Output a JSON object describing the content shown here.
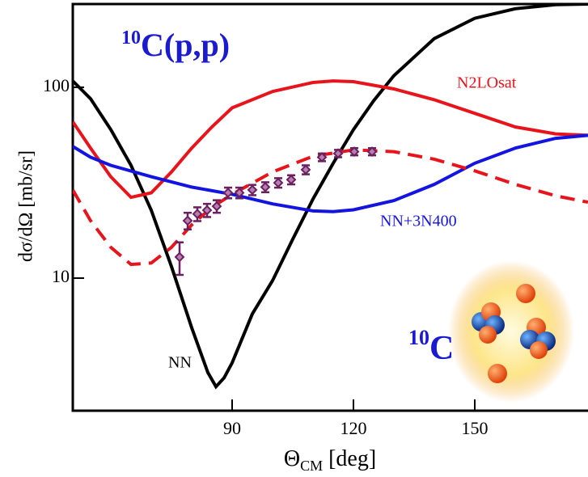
{
  "chart_data": {
    "type": "line",
    "title": {
      "sup": "10",
      "main": "C(p,p)"
    },
    "nucleus_label": {
      "sup": "10",
      "main": "C"
    },
    "y_label": "dσ/dΩ  [mb/sr]",
    "x_label": {
      "main": "Θ",
      "sub": "CM",
      "rest": " [deg]"
    },
    "log_y": true,
    "xlim": [
      50.6,
      178
    ],
    "ylim": [
      2.02,
      273
    ],
    "xticks": [
      90,
      120,
      150
    ],
    "yticks": [
      10,
      100
    ],
    "series": [
      {
        "name": "NN",
        "color": "#000000",
        "dash": false,
        "x": [
          50.6,
          55,
          60,
          65,
          70,
          75,
          80,
          84,
          86,
          88,
          90,
          95,
          100,
          105,
          110,
          115,
          120,
          125,
          130,
          140,
          150,
          160,
          170,
          178
        ],
        "values": [
          108,
          87,
          60,
          39,
          22.7,
          11.5,
          5.5,
          3.2,
          2.7,
          3.0,
          3.6,
          6.5,
          9.7,
          16,
          26,
          40,
          60,
          85,
          115,
          180,
          230,
          258,
          271,
          273
        ]
      },
      {
        "name": "N2LOsat",
        "color": "#e8141c",
        "dash": false,
        "x": [
          50.6,
          55,
          60,
          65,
          70,
          75,
          80,
          85,
          90,
          100,
          110,
          115,
          120,
          130,
          140,
          150,
          160,
          170,
          178
        ],
        "values": [
          66,
          48,
          34,
          26.5,
          28,
          36,
          48,
          62,
          78,
          95,
          106,
          108,
          107,
          98,
          86,
          73,
          62,
          57,
          56
        ]
      },
      {
        "name": "NN+3N400",
        "color": "#1414e0",
        "dash": false,
        "x": [
          50.6,
          55,
          60,
          70,
          80,
          90,
          100,
          110,
          115,
          120,
          130,
          140,
          150,
          160,
          170,
          178
        ],
        "values": [
          49,
          43,
          39,
          34,
          30,
          27.5,
          24.5,
          22.5,
          22.3,
          22.8,
          25.5,
          31,
          40,
          48,
          54,
          56
        ]
      },
      {
        "color": "#e8141c",
        "dash": true,
        "x": [
          50.6,
          55,
          60,
          65,
          70,
          75,
          80,
          85,
          90,
          100,
          110,
          120,
          130,
          140,
          150,
          160,
          170,
          178
        ],
        "values": [
          29,
          20,
          14.5,
          11.8,
          12,
          14.5,
          19,
          23.5,
          27.5,
          36,
          43.5,
          47,
          46,
          42,
          36.5,
          31,
          27,
          25
        ]
      }
    ],
    "points": {
      "color": "#6a1f5e",
      "x": [
        77,
        79,
        81.4,
        83.8,
        86.2,
        89,
        91.8,
        95,
        98.2,
        101.4,
        104.6,
        108.2,
        112.2,
        116.2,
        120.2,
        124.6
      ],
      "values": [
        12.9,
        20,
        21.7,
        22.7,
        23.8,
        28,
        28,
        29,
        30,
        31.6,
        32.8,
        37,
        43,
        45,
        46,
        46
      ],
      "errors": [
        2.5,
        2,
        1.8,
        1.8,
        1.8,
        1.8,
        1.8,
        1.8,
        1.8,
        1.8,
        1.8,
        2,
        2,
        2,
        2,
        2
      ]
    }
  }
}
